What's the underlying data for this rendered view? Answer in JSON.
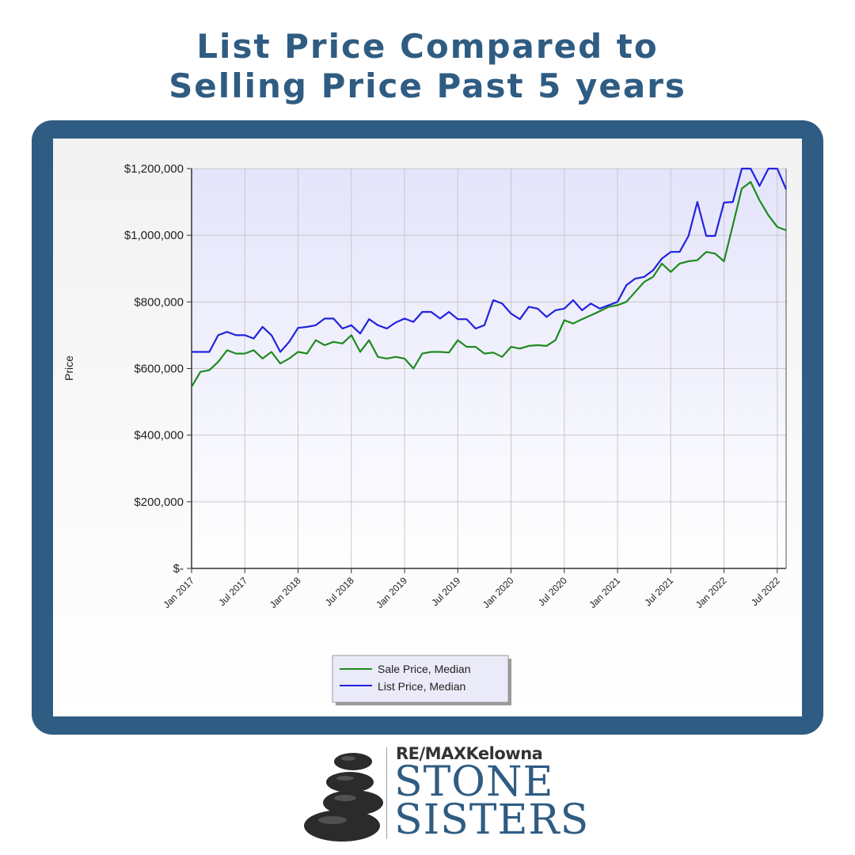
{
  "page": {
    "title_line1": "List Price Compared to",
    "title_line2": "Selling Price Past 5 years"
  },
  "brand": {
    "line1": "RE/MAXKelowna",
    "line2": "STONE",
    "line3": "SISTERS",
    "accent_color": "#2f5c82",
    "stone_color": "#2b2b2b"
  },
  "chart_data": {
    "type": "line",
    "title": "",
    "xlabel": "",
    "ylabel": "Price",
    "ylim": [
      0,
      1200000
    ],
    "y_ticks": [
      {
        "value": 0,
        "label": "$-"
      },
      {
        "value": 200000,
        "label": "$200,000"
      },
      {
        "value": 400000,
        "label": "$400,000"
      },
      {
        "value": 600000,
        "label": "$600,000"
      },
      {
        "value": 800000,
        "label": "$800,000"
      },
      {
        "value": 1000000,
        "label": "$1,000,000"
      },
      {
        "value": 1200000,
        "label": "$1,200,000"
      }
    ],
    "x_ticks": [
      {
        "index": 0,
        "label": "Jan 2017"
      },
      {
        "index": 6,
        "label": "Jul 2017"
      },
      {
        "index": 12,
        "label": "Jan 2018"
      },
      {
        "index": 18,
        "label": "Jul 2018"
      },
      {
        "index": 24,
        "label": "Jan 2019"
      },
      {
        "index": 30,
        "label": "Jul 2019"
      },
      {
        "index": 36,
        "label": "Jan 2020"
      },
      {
        "index": 42,
        "label": "Jul 2020"
      },
      {
        "index": 48,
        "label": "Jan 2021"
      },
      {
        "index": 54,
        "label": "Jul 2021"
      },
      {
        "index": 60,
        "label": "Jan 2022"
      },
      {
        "index": 66,
        "label": "Jul 2022"
      }
    ],
    "x_start": "Jan 2017",
    "x_end": "Jul 2022",
    "grid": true,
    "legend_position": "bottom-center",
    "series": [
      {
        "name": "Sale Price, Median",
        "color": "#1f8a1f",
        "values": [
          545000,
          590000,
          595000,
          620000,
          655000,
          645000,
          645000,
          655000,
          630000,
          650000,
          615000,
          630000,
          650000,
          645000,
          685000,
          670000,
          680000,
          675000,
          700000,
          650000,
          685000,
          635000,
          630000,
          635000,
          630000,
          600000,
          645000,
          650000,
          650000,
          648000,
          685000,
          665000,
          665000,
          645000,
          648000,
          635000,
          665000,
          660000,
          668000,
          670000,
          668000,
          685000,
          745000,
          735000,
          748000,
          760000,
          772000,
          785000,
          790000,
          800000,
          830000,
          860000,
          875000,
          915000,
          890000,
          915000,
          922000,
          925000,
          950000,
          945000,
          922000,
          1030000,
          1140000,
          1160000,
          1105000,
          1060000,
          1025000,
          1015000
        ]
      },
      {
        "name": "List Price, Median",
        "color": "#2222dd",
        "values": [
          650000,
          650000,
          650000,
          700000,
          710000,
          700000,
          700000,
          690000,
          725000,
          700000,
          650000,
          680000,
          722000,
          725000,
          730000,
          750000,
          750000,
          720000,
          730000,
          705000,
          748000,
          730000,
          720000,
          738000,
          750000,
          740000,
          770000,
          770000,
          750000,
          770000,
          748000,
          748000,
          720000,
          730000,
          805000,
          795000,
          765000,
          748000,
          785000,
          780000,
          755000,
          775000,
          780000,
          805000,
          775000,
          795000,
          780000,
          790000,
          800000,
          850000,
          870000,
          875000,
          895000,
          930000,
          950000,
          950000,
          998000,
          1100000,
          998000,
          998000,
          1098000,
          1100000,
          1200000,
          1200000,
          1148000,
          1200000,
          1200000,
          1138000
        ]
      }
    ]
  }
}
